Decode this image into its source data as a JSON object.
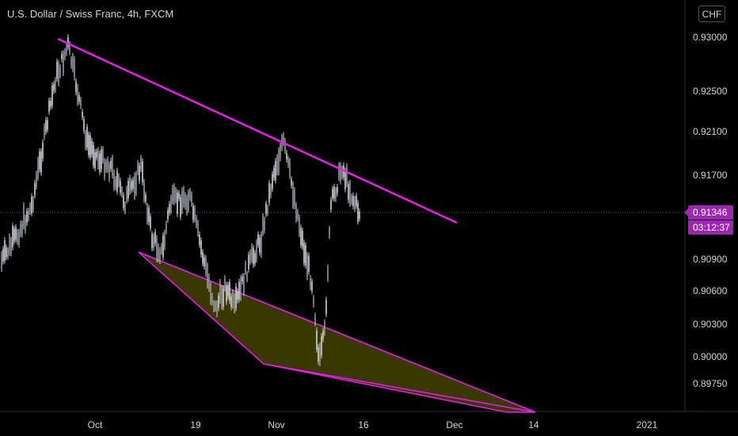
{
  "header": {
    "title": "U.S. Dollar / Swiss Franc, 4h, FXCM",
    "currency_button": "CHF"
  },
  "price_axis": {
    "ticks": [
      "0.93000",
      "0.92500",
      "0.92100",
      "0.91700",
      "0.90900",
      "0.90600",
      "0.90300",
      "0.90000",
      "0.89750"
    ]
  },
  "time_axis": {
    "ticks": [
      "Oct",
      "19",
      "Nov",
      "16",
      "Dec",
      "14",
      "2021"
    ]
  },
  "last_price": {
    "value": "0.91346",
    "countdown": "03:12:37"
  },
  "colors": {
    "background": "#000000",
    "candles": "#d1d4dc",
    "trendline": "#e91ee9",
    "triangle_fill": "#3b3700",
    "price_tag": "#9c27b0",
    "axis_text": "#d1d4dc"
  },
  "chart_data": {
    "type": "candlestick",
    "symbol": "USDCHF",
    "timeframe": "4h",
    "approx_close_path": [
      {
        "label": "late Sep",
        "close": 0.9085
      },
      {
        "label": "Sep 25",
        "close": 0.93
      },
      {
        "label": "Oct 1",
        "close": 0.921
      },
      {
        "label": "Oct 9",
        "close": 0.909
      },
      {
        "label": "Oct 22",
        "close": 0.904
      },
      {
        "label": "Oct 30",
        "close": 0.921
      },
      {
        "label": "Nov 9",
        "close": 0.899
      },
      {
        "label": "Nov 12",
        "close": 0.9185
      },
      {
        "label": "Nov 16",
        "close": 0.91346
      }
    ],
    "last_price": 0.91346,
    "drawings": [
      "descending resistance trendline",
      "filled triangle pattern below price"
    ]
  }
}
